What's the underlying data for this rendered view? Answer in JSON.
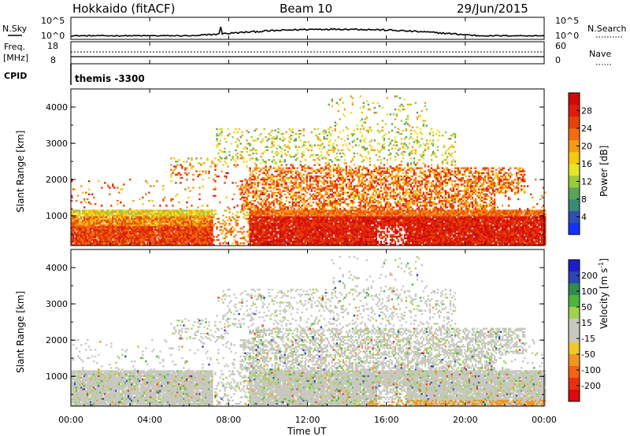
{
  "header": {
    "station": "Hokkaido (fitACF)",
    "beam": "Beam 10",
    "date": "29/Jun/2015"
  },
  "noise_panel": {
    "left_label": "N.Sky",
    "right_label": "N.Search",
    "ticks_left": [
      "10^5",
      "10^0"
    ],
    "ticks_right": [
      "10^5",
      "10^0"
    ]
  },
  "freq_panel": {
    "left_label_line1": "Freq.",
    "left_label_line2": "[MHz]",
    "ticks_left": [
      "18",
      "8"
    ],
    "ticks_right": [
      "60",
      "0"
    ],
    "right_label": "Nave"
  },
  "cpid": {
    "label": "CPID",
    "value": "themis -3300"
  },
  "axes": {
    "ylabel": "Slant Range [km]",
    "xlabel": "Time UT",
    "yticks": [
      "1000",
      "2000",
      "3000",
      "4000"
    ],
    "xticks": [
      "00:00",
      "04:00",
      "08:00",
      "12:00",
      "16:00",
      "20:00",
      "00:00"
    ]
  },
  "power_colorbar": {
    "label": "Power [dB]",
    "ticks": [
      "4",
      "8",
      "12",
      "16",
      "20",
      "24",
      "28"
    ],
    "colors": [
      "#1432ff",
      "#2e4fb4",
      "#3a8a78",
      "#5aa55a",
      "#9cc93c",
      "#e6e628",
      "#f5c814",
      "#f59a14",
      "#f06e0f",
      "#e6420a",
      "#dc1e0a",
      "#d20a0a"
    ]
  },
  "velocity_colorbar": {
    "label": "Velocity [m s",
    "label_sup": "-1",
    "label_end": "]",
    "ticks": [
      "200",
      "100",
      "50",
      "15",
      "-15",
      "-50",
      "-100",
      "-200"
    ],
    "colors": [
      "#1e1ec8",
      "#2d46b4",
      "#2d8c50",
      "#50b43c",
      "#a0d250",
      "#c8c8c0",
      "#c8c8c0",
      "#f0c828",
      "#f0961e",
      "#f06414",
      "#e6320f",
      "#dc0a0a"
    ]
  },
  "chart_data": {
    "type": "heatmap",
    "x_range_hours": [
      0,
      24
    ],
    "y_range_km": [
      180,
      4500
    ],
    "ylim_km": [
      180,
      4500
    ],
    "panels": [
      "Power [dB]",
      "Velocity [m s-1]"
    ]
  }
}
